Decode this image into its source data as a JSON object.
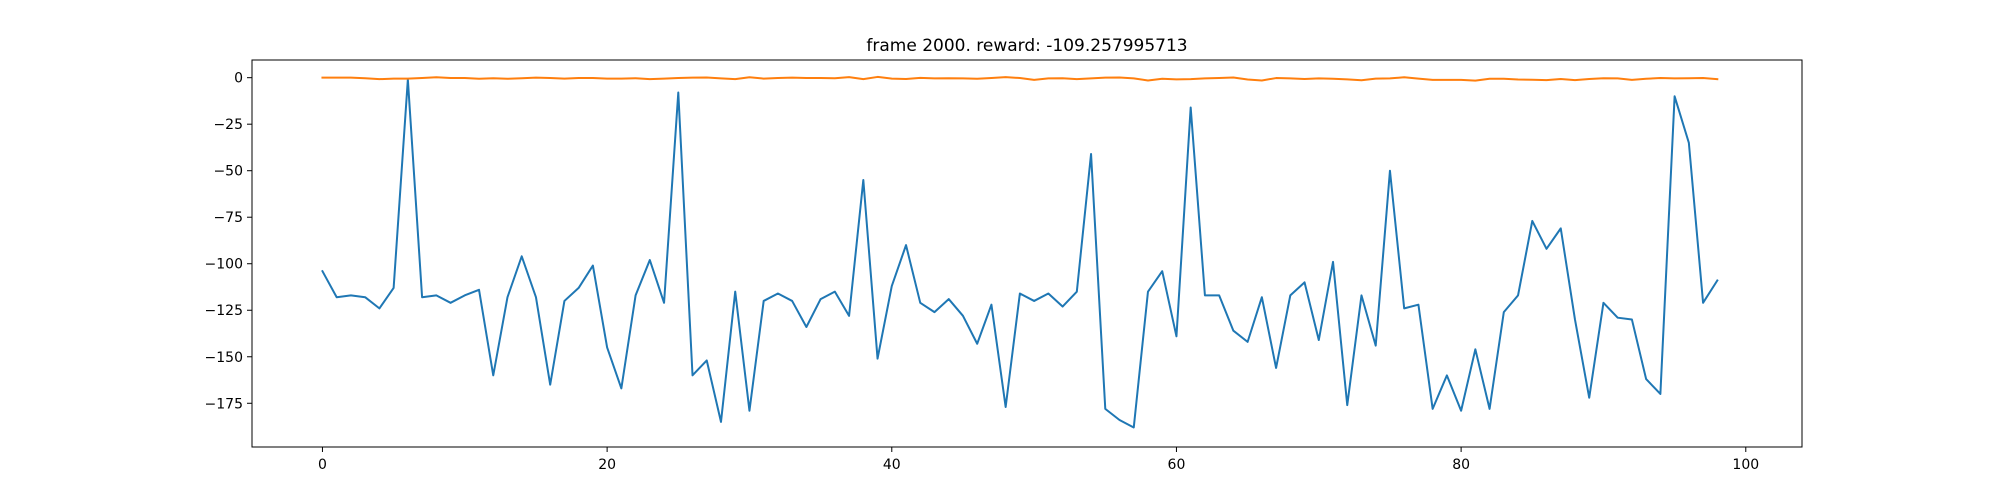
{
  "chart_data": {
    "type": "line",
    "title": "frame 2000. reward: -109.257995713",
    "xlabel": "",
    "ylabel": "",
    "xlim": [
      -4.95,
      103.95
    ],
    "ylim": [
      -198.5,
      9.5
    ],
    "xticks": [
      0,
      20,
      40,
      60,
      80,
      100
    ],
    "yticks": [
      0,
      -25,
      -50,
      -75,
      -100,
      -125,
      -150,
      -175
    ],
    "grid": false,
    "legend": "none",
    "series": [
      {
        "color": "#1f77b4",
        "x": [
          0,
          1,
          2,
          3,
          4,
          5,
          6,
          7,
          8,
          9,
          10,
          11,
          12,
          13,
          14,
          15,
          16,
          17,
          18,
          19,
          20,
          21,
          22,
          23,
          24,
          25,
          26,
          27,
          28,
          29,
          30,
          31,
          32,
          33,
          34,
          35,
          36,
          37,
          38,
          39,
          40,
          41,
          42,
          43,
          44,
          45,
          46,
          47,
          48,
          49,
          50,
          51,
          52,
          53,
          54,
          55,
          56,
          57,
          58,
          59,
          60,
          61,
          62,
          63,
          64,
          65,
          66,
          67,
          68,
          69,
          70,
          71,
          72,
          73,
          74,
          75,
          76,
          77,
          78,
          79,
          80,
          81,
          82,
          83,
          84,
          85,
          86,
          87,
          88,
          89,
          90,
          91,
          92,
          93,
          94,
          95,
          96,
          97,
          98
        ],
        "values": [
          -104,
          -118,
          -117,
          -118,
          -124,
          -113,
          -1,
          -118,
          -117,
          -121,
          -117,
          -114,
          -160,
          -118,
          -96,
          -118,
          -165,
          -120,
          -113,
          -101,
          -145,
          -167,
          -117,
          -98,
          -121,
          -8,
          -160,
          -152,
          -185,
          -115,
          -179,
          -120,
          -116,
          -120,
          -134,
          -119,
          -115,
          -128,
          -55,
          -151,
          -112,
          -90,
          -121,
          -126,
          -119,
          -128,
          -143,
          -122,
          -177,
          -116,
          -120,
          -116,
          -123,
          -115,
          -41,
          -178,
          -184,
          -188,
          -115,
          -104,
          -139,
          -16,
          -117,
          -117,
          -136,
          -142,
          -118,
          -156,
          -117,
          -110,
          -141,
          -99,
          -176,
          -117,
          -144,
          -50,
          -124,
          -122,
          -178,
          -160,
          -179,
          -146,
          -178,
          -126,
          -117,
          -77,
          -92,
          -81,
          -130,
          -172,
          -121,
          -129,
          -130,
          -162,
          -170,
          -10,
          -35,
          -121,
          -109
        ]
      },
      {
        "color": "#ff7f0e",
        "x": [
          0,
          1,
          2,
          3,
          4,
          5,
          6,
          7,
          8,
          9,
          10,
          11,
          12,
          13,
          14,
          15,
          16,
          17,
          18,
          19,
          20,
          21,
          22,
          23,
          24,
          25,
          26,
          27,
          28,
          29,
          30,
          31,
          32,
          33,
          34,
          35,
          36,
          37,
          38,
          39,
          40,
          41,
          42,
          43,
          44,
          45,
          46,
          47,
          48,
          49,
          50,
          51,
          52,
          53,
          54,
          55,
          56,
          57,
          58,
          59,
          60,
          61,
          62,
          63,
          64,
          65,
          66,
          67,
          68,
          69,
          70,
          71,
          72,
          73,
          74,
          75,
          76,
          77,
          78,
          79,
          80,
          81,
          82,
          83,
          84,
          85,
          86,
          87,
          88,
          89,
          90,
          91,
          92,
          93,
          94,
          95,
          96,
          97,
          98
        ],
        "values": [
          0,
          0,
          0,
          -0.3,
          -0.8,
          -0.5,
          -0.5,
          -0.2,
          0.2,
          -0.2,
          -0.2,
          -0.6,
          -0.3,
          -0.6,
          -0.3,
          0,
          -0.2,
          -0.5,
          -0.2,
          -0.2,
          -0.5,
          -0.5,
          -0.3,
          -0.8,
          -0.5,
          -0.2,
          0,
          0.1,
          -0.4,
          -0.8,
          0.2,
          -0.5,
          -0.2,
          0,
          -0.2,
          -0.2,
          -0.3,
          0.3,
          -0.8,
          0.4,
          -0.5,
          -0.7,
          -0.1,
          -0.4,
          -0.3,
          -0.4,
          -0.6,
          -0.2,
          0.3,
          -0.2,
          -1.2,
          -0.4,
          -0.3,
          -0.8,
          -0.4,
          0,
          0.1,
          -0.4,
          -1.5,
          -0.6,
          -0.9,
          -0.8,
          -0.4,
          -0.2,
          0.1,
          -1,
          -1.5,
          -0.2,
          -0.4,
          -0.7,
          -0.4,
          -0.6,
          -0.9,
          -1.4,
          -0.5,
          -0.4,
          0.2,
          -0.5,
          -1.2,
          -1.2,
          -1.2,
          -1.6,
          -0.6,
          -0.6,
          -1,
          -1.1,
          -1.3,
          -0.7,
          -1.3,
          -0.7,
          -0.3,
          -0.4,
          -1.2,
          -0.6,
          -0.2,
          -0.4,
          -0.3,
          -0.2,
          -0.8
        ]
      }
    ]
  }
}
